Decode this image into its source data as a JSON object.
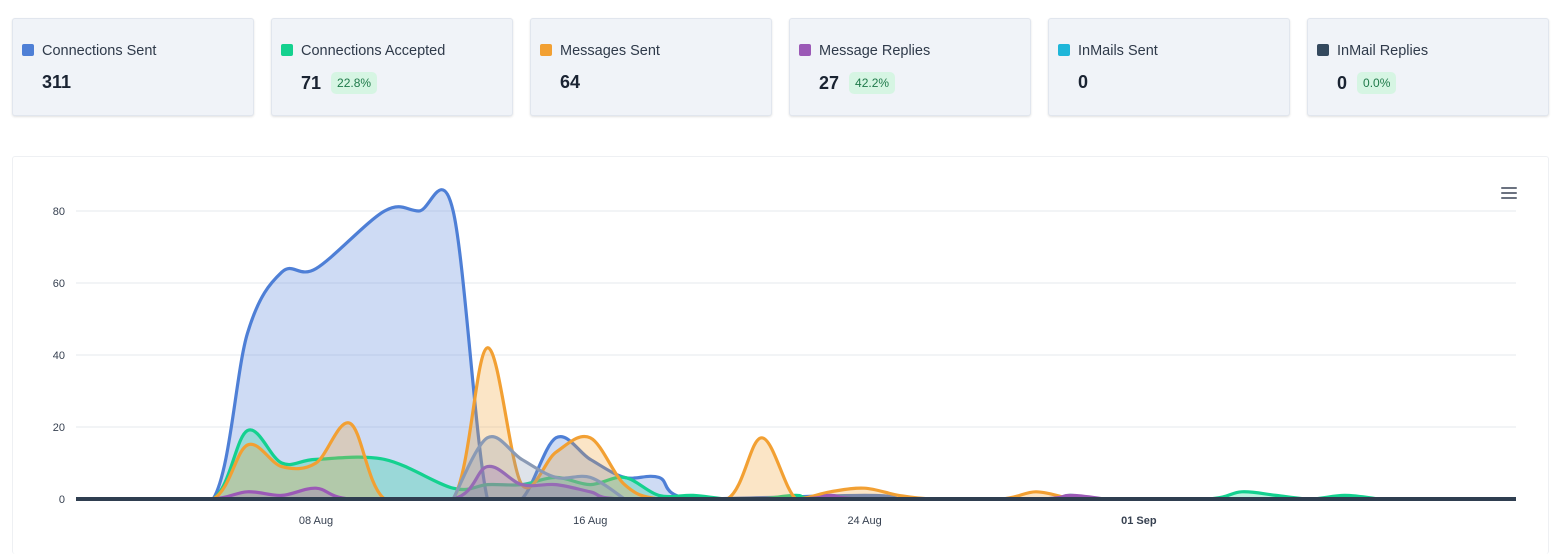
{
  "stats": [
    {
      "label": "Connections Sent",
      "value": "311",
      "badge": "",
      "color": "#4e7fd6"
    },
    {
      "label": "Connections Accepted",
      "value": "71",
      "badge": "22.8%",
      "color": "#14d18f"
    },
    {
      "label": "Messages Sent",
      "value": "64",
      "badge": "",
      "color": "#f2a033"
    },
    {
      "label": "Message Replies",
      "value": "27",
      "badge": "42.2%",
      "color": "#9b59b6"
    },
    {
      "label": "InMails Sent",
      "value": "0",
      "badge": "",
      "color": "#1fb6d9"
    },
    {
      "label": "InMail Replies",
      "value": "0",
      "badge": "0.0%",
      "color": "#34495e"
    }
  ],
  "chart_menu_icon": "hamburger-menu-icon",
  "chart_data": {
    "type": "area",
    "ylim": [
      0,
      80
    ],
    "yticks": [
      0,
      20,
      40,
      60,
      80
    ],
    "xlim": [
      "2025-08-01",
      "2025-09-12"
    ],
    "xticks": [
      {
        "label": "08 Aug",
        "date": "2025-08-08",
        "bold": false
      },
      {
        "label": "16 Aug",
        "date": "2025-08-16",
        "bold": false
      },
      {
        "label": "24 Aug",
        "date": "2025-08-24",
        "bold": false
      },
      {
        "label": "01 Sep",
        "date": "2025-09-01",
        "bold": true
      }
    ],
    "grid": true,
    "series": [
      {
        "name": "Connections Sent",
        "color": "#4e7fd6",
        "points": [
          [
            "2025-08-03",
            0
          ],
          [
            "2025-08-05",
            0
          ],
          [
            "2025-08-06",
            46
          ],
          [
            "2025-08-07",
            63
          ],
          [
            "2025-08-08",
            64
          ],
          [
            "2025-08-10",
            80
          ],
          [
            "2025-08-11",
            80
          ],
          [
            "2025-08-12",
            80
          ],
          [
            "2025-08-13",
            0
          ],
          [
            "2025-08-14",
            0
          ],
          [
            "2025-08-15",
            17
          ],
          [
            "2025-08-16",
            11
          ],
          [
            "2025-08-17",
            6
          ],
          [
            "2025-08-18",
            6
          ],
          [
            "2025-08-19",
            0
          ],
          [
            "2025-08-24",
            1
          ],
          [
            "2025-08-25",
            0
          ]
        ]
      },
      {
        "name": "Connections Accepted",
        "color": "#14d18f",
        "points": [
          [
            "2025-08-03",
            0
          ],
          [
            "2025-08-05",
            0
          ],
          [
            "2025-08-06",
            19
          ],
          [
            "2025-08-07",
            10
          ],
          [
            "2025-08-08",
            11
          ],
          [
            "2025-08-10",
            11
          ],
          [
            "2025-08-12",
            3
          ],
          [
            "2025-08-13",
            4
          ],
          [
            "2025-08-14",
            4
          ],
          [
            "2025-08-15",
            6
          ],
          [
            "2025-08-16",
            4
          ],
          [
            "2025-08-17",
            6
          ],
          [
            "2025-08-18",
            1
          ],
          [
            "2025-08-19",
            1
          ],
          [
            "2025-08-20",
            0
          ],
          [
            "2025-08-21",
            0
          ],
          [
            "2025-08-22",
            1
          ],
          [
            "2025-08-23",
            0
          ],
          [
            "2025-08-29",
            0
          ],
          [
            "2025-08-30",
            1
          ],
          [
            "2025-08-31",
            0
          ],
          [
            "2025-09-03",
            0
          ],
          [
            "2025-09-04",
            2
          ],
          [
            "2025-09-05",
            1
          ],
          [
            "2025-09-06",
            0
          ],
          [
            "2025-09-07",
            1
          ],
          [
            "2025-09-08",
            0
          ]
        ]
      },
      {
        "name": "Messages Sent",
        "color": "#f2a033",
        "points": [
          [
            "2025-08-03",
            0
          ],
          [
            "2025-08-05",
            0
          ],
          [
            "2025-08-06",
            15
          ],
          [
            "2025-08-07",
            9
          ],
          [
            "2025-08-08",
            10
          ],
          [
            "2025-08-09",
            21
          ],
          [
            "2025-08-10",
            0
          ],
          [
            "2025-08-12",
            0
          ],
          [
            "2025-08-13",
            42
          ],
          [
            "2025-08-14",
            4
          ],
          [
            "2025-08-15",
            13
          ],
          [
            "2025-08-16",
            17
          ],
          [
            "2025-08-17",
            4
          ],
          [
            "2025-08-18",
            0
          ],
          [
            "2025-08-20",
            0
          ],
          [
            "2025-08-21",
            17
          ],
          [
            "2025-08-22",
            0
          ],
          [
            "2025-08-23",
            2
          ],
          [
            "2025-08-24",
            3
          ],
          [
            "2025-08-25",
            1
          ],
          [
            "2025-08-26",
            0
          ],
          [
            "2025-08-28",
            0
          ],
          [
            "2025-08-29",
            2
          ],
          [
            "2025-08-30",
            0
          ]
        ]
      },
      {
        "name": "Message Replies",
        "color": "#9b59b6",
        "points": [
          [
            "2025-08-03",
            0
          ],
          [
            "2025-08-05",
            0
          ],
          [
            "2025-08-06",
            2
          ],
          [
            "2025-08-07",
            1
          ],
          [
            "2025-08-08",
            3
          ],
          [
            "2025-08-09",
            0
          ],
          [
            "2025-08-12",
            0
          ],
          [
            "2025-08-13",
            9
          ],
          [
            "2025-08-14",
            4
          ],
          [
            "2025-08-15",
            4
          ],
          [
            "2025-08-16",
            2
          ],
          [
            "2025-08-17",
            0
          ],
          [
            "2025-08-22",
            0
          ],
          [
            "2025-08-23",
            1
          ],
          [
            "2025-08-24",
            0
          ],
          [
            "2025-08-29",
            0
          ],
          [
            "2025-08-30",
            1
          ],
          [
            "2025-08-31",
            0
          ]
        ]
      },
      {
        "name": "InMails Sent",
        "color": "#1fb6d9",
        "points": [
          [
            "2025-08-01",
            0
          ],
          [
            "2025-09-12",
            0
          ]
        ]
      },
      {
        "name": "InMail Replies",
        "color": "#34495e",
        "points": [
          [
            "2025-08-01",
            0
          ],
          [
            "2025-09-12",
            0
          ]
        ]
      }
    ],
    "overlay": {
      "color": "#8a9ab5",
      "points": [
        [
          "2025-08-12",
          0
        ],
        [
          "2025-08-13",
          17
        ],
        [
          "2025-08-14",
          11
        ],
        [
          "2025-08-15",
          6
        ],
        [
          "2025-08-16",
          6
        ],
        [
          "2025-08-17",
          0
        ]
      ]
    }
  }
}
